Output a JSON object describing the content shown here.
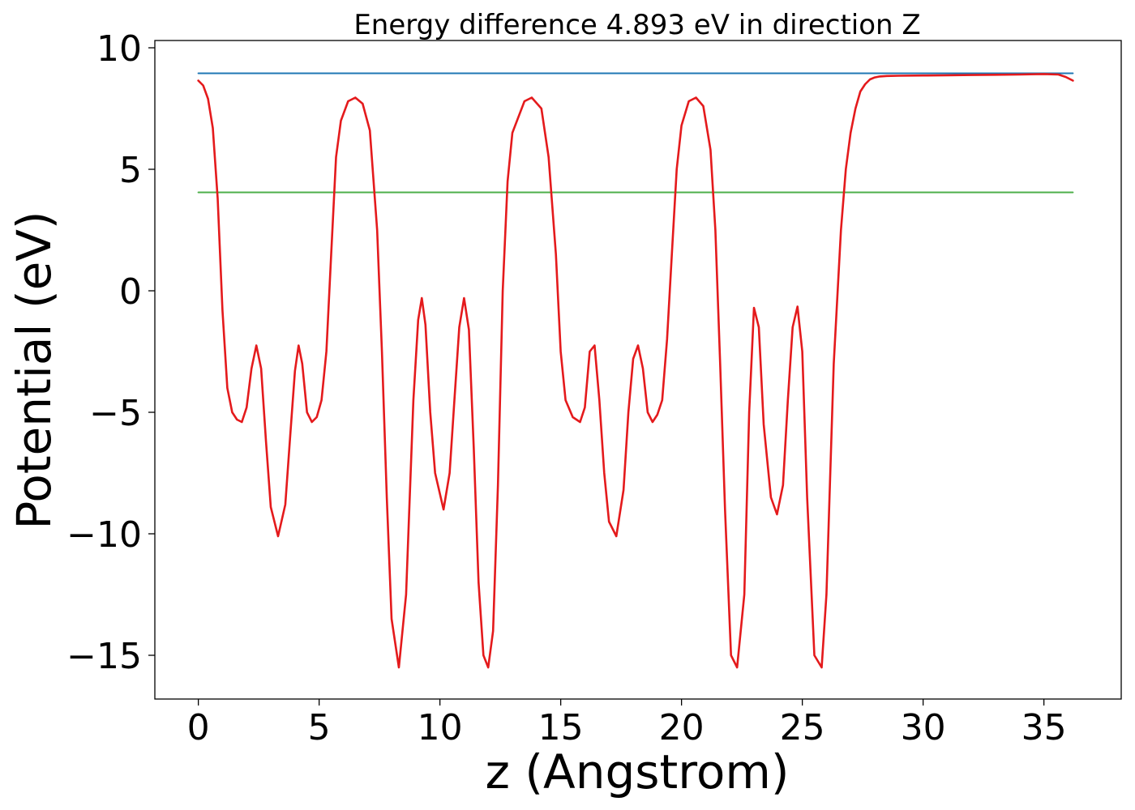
{
  "chart_data": {
    "type": "line",
    "title": "Energy difference 4.893 eV in direction Z",
    "xlabel": "z (Angstrom)",
    "ylabel": "Potential (eV)",
    "xlim": [
      -1.8,
      38.2
    ],
    "ylim": [
      -16.8,
      10.3
    ],
    "xticks": [
      0,
      5,
      10,
      15,
      20,
      25,
      30,
      35
    ],
    "xtick_labels": [
      "0",
      "5",
      "10",
      "15",
      "20",
      "25",
      "30",
      "35"
    ],
    "yticks": [
      10,
      5,
      0,
      -5,
      -10,
      -15
    ],
    "ytick_labels": [
      "10",
      "5",
      "0",
      "−5",
      "−10",
      "−15"
    ],
    "grid": false,
    "series": [
      {
        "color": "#1f77b4",
        "x": [
          0,
          36.2
        ],
        "y": [
          8.95,
          8.95
        ]
      },
      {
        "color": "#4daf4a",
        "x": [
          0,
          36.2
        ],
        "y": [
          4.05,
          4.05
        ]
      },
      {
        "color": "#e41a1c",
        "x": [
          0,
          0.2,
          0.4,
          0.6,
          0.8,
          1.0,
          1.2,
          1.4,
          1.6,
          1.8,
          2.0,
          2.2,
          2.4,
          2.6,
          2.8,
          3.0,
          3.3,
          3.6,
          3.8,
          4.0,
          4.15,
          4.3,
          4.5,
          4.7,
          4.9,
          5.1,
          5.3,
          5.5,
          5.7,
          5.9,
          6.2,
          6.5,
          6.8,
          7.1,
          7.4,
          7.6,
          7.8,
          8.0,
          8.3,
          8.6,
          8.9,
          9.1,
          9.25,
          9.4,
          9.6,
          9.8,
          10.15,
          10.4,
          10.6,
          10.8,
          11.0,
          11.2,
          11.4,
          11.6,
          11.8,
          12.0,
          12.2,
          12.4,
          12.6,
          12.8,
          13.0,
          13.5,
          13.8,
          14.2,
          14.5,
          14.8,
          15.0,
          15.2,
          15.5,
          15.8,
          16.0,
          16.2,
          16.4,
          16.6,
          16.8,
          17.0,
          17.3,
          17.6,
          17.8,
          18.0,
          18.2,
          18.4,
          18.6,
          18.8,
          19.0,
          19.2,
          19.4,
          19.6,
          19.8,
          20.0,
          20.3,
          20.6,
          20.9,
          21.2,
          21.4,
          21.6,
          21.8,
          22.05,
          22.3,
          22.6,
          22.8,
          23.0,
          23.2,
          23.4,
          23.7,
          23.95,
          24.2,
          24.4,
          24.6,
          24.8,
          25.0,
          25.2,
          25.5,
          25.8,
          26.0,
          26.3,
          26.6,
          26.8,
          27.0,
          27.2,
          27.4,
          27.6,
          27.8,
          28.0,
          28.2,
          28.5,
          29.0,
          30.0,
          31.0,
          32.0,
          33.0,
          34.0,
          35.0,
          35.6,
          35.9,
          36.2
        ],
        "y": [
          8.65,
          8.45,
          7.9,
          6.7,
          3.8,
          -0.8,
          -4.0,
          -5.0,
          -5.3,
          -5.4,
          -4.8,
          -3.2,
          -2.25,
          -3.2,
          -6.2,
          -8.9,
          -10.1,
          -8.8,
          -6.0,
          -3.3,
          -2.25,
          -3.0,
          -5.0,
          -5.4,
          -5.2,
          -4.5,
          -2.5,
          1.5,
          5.5,
          7.0,
          7.8,
          7.95,
          7.7,
          6.6,
          2.5,
          -2.5,
          -8.5,
          -13.5,
          -15.5,
          -12.5,
          -4.5,
          -1.2,
          -0.3,
          -1.4,
          -5.0,
          -7.5,
          -9.0,
          -7.5,
          -4.5,
          -1.5,
          -0.3,
          -1.6,
          -6.5,
          -12.0,
          -15.0,
          -15.5,
          -14.0,
          -8.0,
          0.0,
          4.5,
          6.5,
          7.8,
          7.95,
          7.5,
          5.5,
          1.5,
          -2.5,
          -4.5,
          -5.2,
          -5.4,
          -4.8,
          -2.5,
          -2.25,
          -4.5,
          -7.5,
          -9.5,
          -10.1,
          -8.2,
          -5.0,
          -2.8,
          -2.25,
          -3.2,
          -5.0,
          -5.4,
          -5.1,
          -4.5,
          -2.0,
          1.5,
          5.0,
          6.8,
          7.8,
          7.95,
          7.6,
          5.8,
          2.5,
          -3.0,
          -9.0,
          -15.0,
          -15.5,
          -12.5,
          -5.0,
          -0.7,
          -1.5,
          -5.5,
          -8.5,
          -9.2,
          -8.0,
          -4.5,
          -1.5,
          -0.65,
          -2.5,
          -8.5,
          -15.0,
          -15.5,
          -12.5,
          -3.0,
          2.5,
          5.0,
          6.5,
          7.5,
          8.2,
          8.5,
          8.7,
          8.78,
          8.82,
          8.84,
          8.85,
          8.86,
          8.87,
          8.88,
          8.89,
          8.9,
          8.92,
          8.9,
          8.8,
          8.65
        ]
      }
    ]
  }
}
